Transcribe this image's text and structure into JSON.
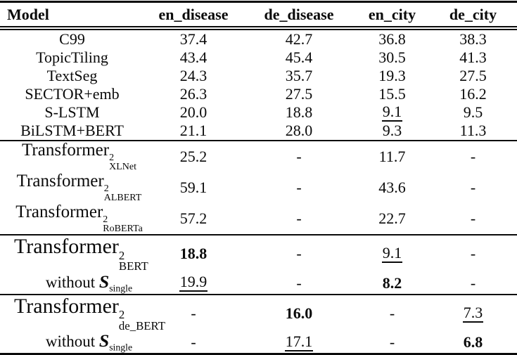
{
  "table": {
    "columns": [
      {
        "key": "model",
        "label": "Model"
      },
      {
        "key": "en_disease",
        "label": "en_disease"
      },
      {
        "key": "de_disease",
        "label": "de_disease"
      },
      {
        "key": "en_city",
        "label": "en_city"
      },
      {
        "key": "de_city",
        "label": "de_city"
      }
    ],
    "sections": [
      {
        "kind": "baselines",
        "large": false,
        "rows": [
          {
            "id": "c99",
            "model": {
              "text": "C99"
            },
            "values": [
              {
                "v": "37.4"
              },
              {
                "v": "42.7"
              },
              {
                "v": "36.8"
              },
              {
                "v": "38.3"
              }
            ]
          },
          {
            "id": "topictiling",
            "model": {
              "text": "TopicTiling"
            },
            "values": [
              {
                "v": "43.4"
              },
              {
                "v": "45.4"
              },
              {
                "v": "30.5"
              },
              {
                "v": "41.3"
              }
            ]
          },
          {
            "id": "textseg",
            "model": {
              "text": "TextSeg"
            },
            "values": [
              {
                "v": "24.3"
              },
              {
                "v": "35.7"
              },
              {
                "v": "19.3"
              },
              {
                "v": "27.5"
              }
            ]
          },
          {
            "id": "sector-emb",
            "model": {
              "text": "SECTOR+emb"
            },
            "values": [
              {
                "v": "26.3"
              },
              {
                "v": "27.5"
              },
              {
                "v": "15.5"
              },
              {
                "v": "16.2"
              }
            ]
          },
          {
            "id": "s-lstm",
            "model": {
              "text": "S-LSTM"
            },
            "values": [
              {
                "v": "20.0"
              },
              {
                "v": "18.8"
              },
              {
                "v": "9.1",
                "style": "underline"
              },
              {
                "v": "9.5"
              }
            ]
          },
          {
            "id": "bilstm-bert",
            "model": {
              "text": "BiLSTM+BERT"
            },
            "values": [
              {
                "v": "21.1"
              },
              {
                "v": "28.0"
              },
              {
                "v": "9.3"
              },
              {
                "v": "11.3"
              }
            ]
          }
        ]
      },
      {
        "kind": "transformer-variants",
        "large": false,
        "rows": [
          {
            "id": "transformer2-xlnet",
            "model": {
              "text": "Transformer",
              "sup": "2",
              "sub": "XLNet"
            },
            "values": [
              {
                "v": "25.2"
              },
              {
                "v": "-"
              },
              {
                "v": "11.7"
              },
              {
                "v": "-"
              }
            ]
          },
          {
            "id": "transformer2-albert",
            "model": {
              "text": "Transformer",
              "sup": "2",
              "sub": "ALBERT"
            },
            "values": [
              {
                "v": "59.1"
              },
              {
                "v": "-"
              },
              {
                "v": "43.6"
              },
              {
                "v": "-"
              }
            ]
          },
          {
            "id": "transformer2-roberta",
            "model": {
              "text": "Transformer",
              "sup": "2",
              "sub": "RoBERTa"
            },
            "values": [
              {
                "v": "57.2"
              },
              {
                "v": "-"
              },
              {
                "v": "22.7"
              },
              {
                "v": "-"
              }
            ]
          }
        ]
      },
      {
        "kind": "main-en",
        "large": true,
        "rows": [
          {
            "id": "transformer2-bert",
            "model": {
              "text": "Transformer",
              "sup": "2",
              "sub": "BERT"
            },
            "values": [
              {
                "v": "18.8",
                "style": "bold"
              },
              {
                "v": "-"
              },
              {
                "v": "9.1",
                "style": "underline"
              },
              {
                "v": "-"
              }
            ]
          },
          {
            "id": "transformer2-bert-without-ssingle",
            "model": {
              "prefix": "without",
              "s": "S",
              "s_sub": "single"
            },
            "values": [
              {
                "v": "19.9",
                "style": "underline"
              },
              {
                "v": "-"
              },
              {
                "v": "8.2",
                "style": "bold"
              },
              {
                "v": "-"
              }
            ]
          }
        ]
      },
      {
        "kind": "main-de",
        "large": true,
        "rows": [
          {
            "id": "transformer2-de-bert",
            "model": {
              "text": "Transformer",
              "sup": "2",
              "sub": "de_BERT"
            },
            "values": [
              {
                "v": "-"
              },
              {
                "v": "16.0",
                "style": "bold"
              },
              {
                "v": "-"
              },
              {
                "v": "7.3",
                "style": "underline"
              }
            ]
          },
          {
            "id": "transformer2-de-bert-without-ssingle",
            "model": {
              "prefix": "without",
              "s": "S",
              "s_sub": "single"
            },
            "values": [
              {
                "v": "-"
              },
              {
                "v": "17.1",
                "style": "underline"
              },
              {
                "v": "-"
              },
              {
                "v": "6.8",
                "style": "bold"
              }
            ]
          }
        ]
      }
    ]
  }
}
